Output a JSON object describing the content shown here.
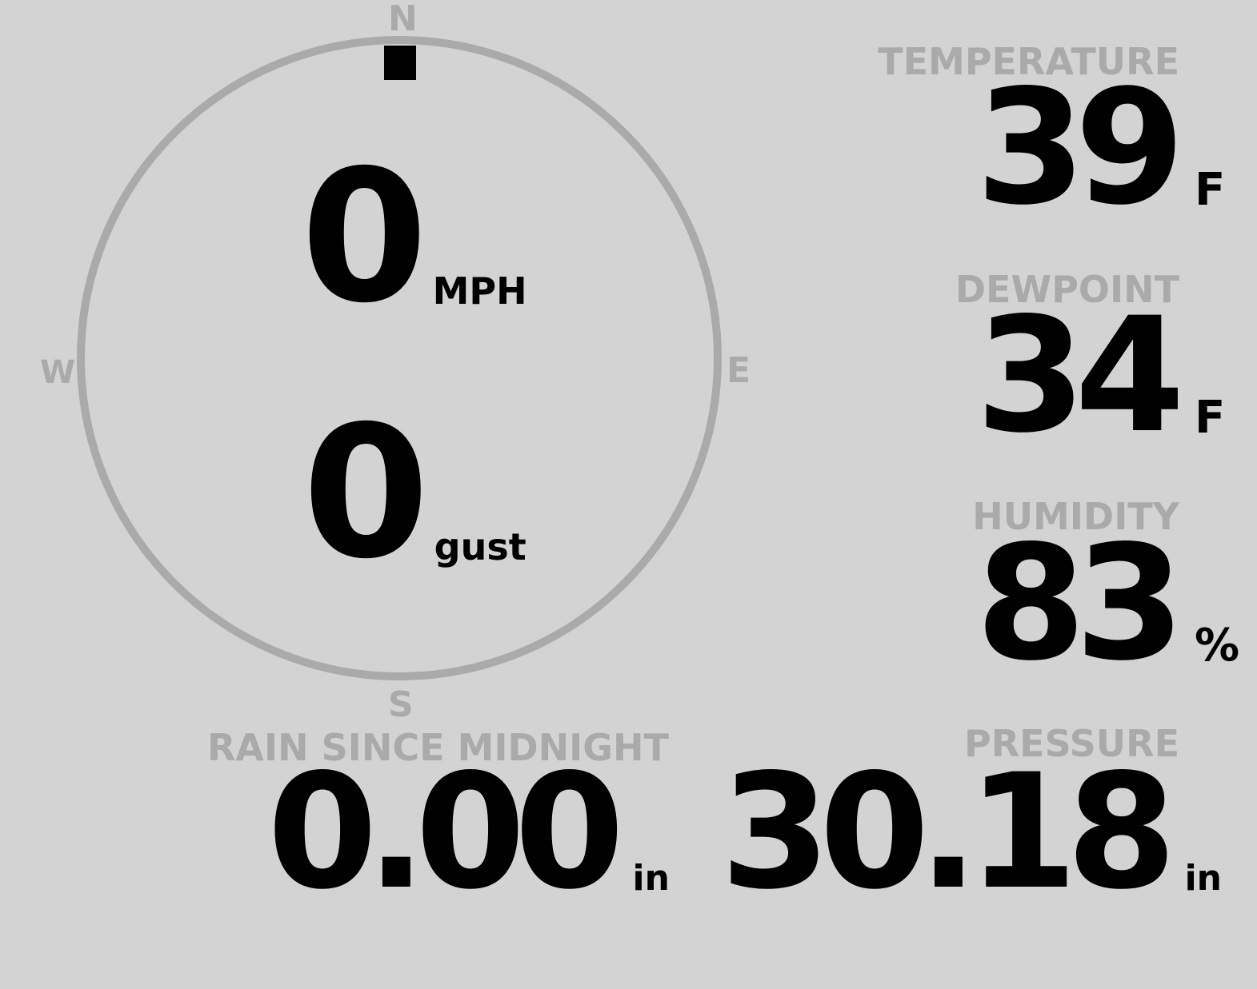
{
  "compass": {
    "north": "N",
    "south": "S",
    "east": "E",
    "west": "W",
    "wind_direction_degrees": 0,
    "ring_color": "#aaaaaa",
    "indicator_color": "#000000"
  },
  "wind": {
    "speed": "0",
    "speed_unit": "MPH",
    "gust": "0",
    "gust_unit": "gust"
  },
  "temperature": {
    "label": "TEMPERATURE",
    "value": "39",
    "unit": "F"
  },
  "dewpoint": {
    "label": "DEWPOINT",
    "value": "34",
    "unit": "F"
  },
  "humidity": {
    "label": "HUMIDITY",
    "value": "83",
    "unit": "%"
  },
  "rain": {
    "label": "RAIN SINCE MIDNIGHT",
    "value": "0.00",
    "unit": "in"
  },
  "pressure": {
    "label": "PRESSURE",
    "value": "30.18",
    "unit": "in"
  },
  "colors": {
    "background": "#d3d3d3",
    "label": "#aaaaaa",
    "value": "#000000"
  }
}
